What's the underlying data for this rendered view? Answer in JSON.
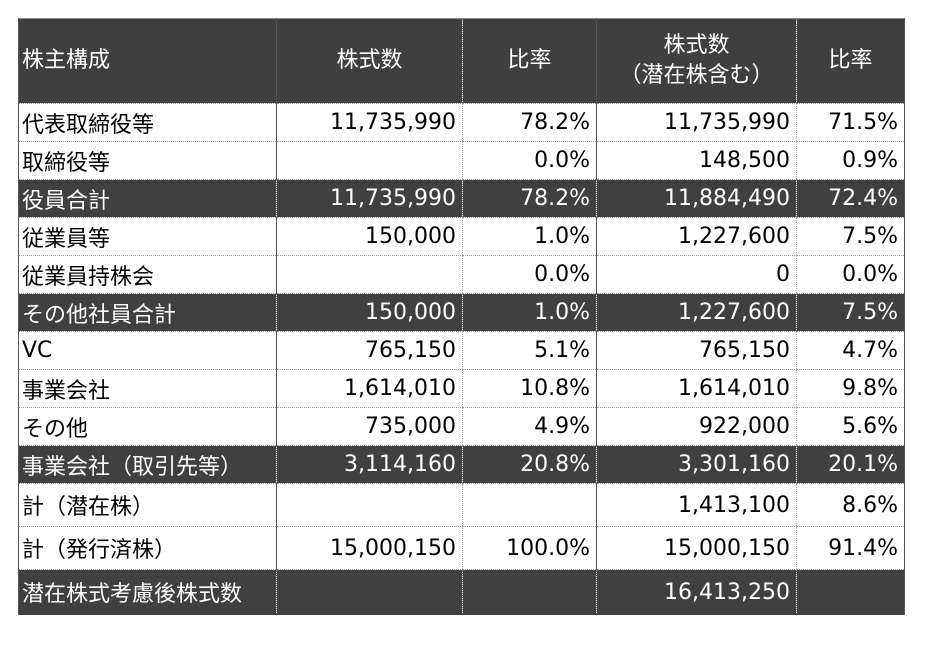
{
  "table": {
    "headers": {
      "composition": "株主構成",
      "shares": "株式数",
      "ratio": "比率",
      "shares_potential_line1": "株式数",
      "shares_potential_line2": "（潜在株含む）",
      "ratio_potential": "比率"
    },
    "rows": [
      {
        "label": "代表取締役等",
        "shares": "11,735,990",
        "ratio": "78.2%",
        "shares_potential": "11,735,990",
        "ratio_potential": "71.5%"
      },
      {
        "label": "取締役等",
        "shares": "",
        "ratio": "0.0%",
        "shares_potential": "148,500",
        "ratio_potential": "0.9%"
      },
      {
        "label": "役員合計",
        "shares": "11,735,990",
        "ratio": "78.2%",
        "shares_potential": "11,884,490",
        "ratio_potential": "72.4%"
      },
      {
        "label": "従業員等",
        "shares": "150,000",
        "ratio": "1.0%",
        "shares_potential": "1,227,600",
        "ratio_potential": "7.5%"
      },
      {
        "label": "従業員持株会",
        "shares": "",
        "ratio": "0.0%",
        "shares_potential": "0",
        "ratio_potential": "0.0%"
      },
      {
        "label": "その他社員合計",
        "shares": "150,000",
        "ratio": "1.0%",
        "shares_potential": "1,227,600",
        "ratio_potential": "7.5%"
      },
      {
        "label": "VC",
        "shares": "765,150",
        "ratio": "5.1%",
        "shares_potential": "765,150",
        "ratio_potential": "4.7%"
      },
      {
        "label": "事業会社",
        "shares": "1,614,010",
        "ratio": "10.8%",
        "shares_potential": "1,614,010",
        "ratio_potential": "9.8%"
      },
      {
        "label": "その他",
        "shares": "735,000",
        "ratio": "4.9%",
        "shares_potential": "922,000",
        "ratio_potential": "5.6%"
      },
      {
        "label": "事業会社（取引先等）",
        "shares": "3,114,160",
        "ratio": "20.8%",
        "shares_potential": "3,301,160",
        "ratio_potential": "20.1%"
      },
      {
        "label": "計（潜在株）",
        "shares": "",
        "ratio": "",
        "shares_potential": "1,413,100",
        "ratio_potential": "8.6%"
      },
      {
        "label": "計（発行済株）",
        "shares": "15,000,150",
        "ratio": "100.0%",
        "shares_potential": "15,000,150",
        "ratio_potential": "91.4%"
      },
      {
        "label": "潜在株式考慮後株式数",
        "shares": "",
        "ratio": "",
        "shares_potential": "16,413,250",
        "ratio_potential": ""
      }
    ]
  }
}
